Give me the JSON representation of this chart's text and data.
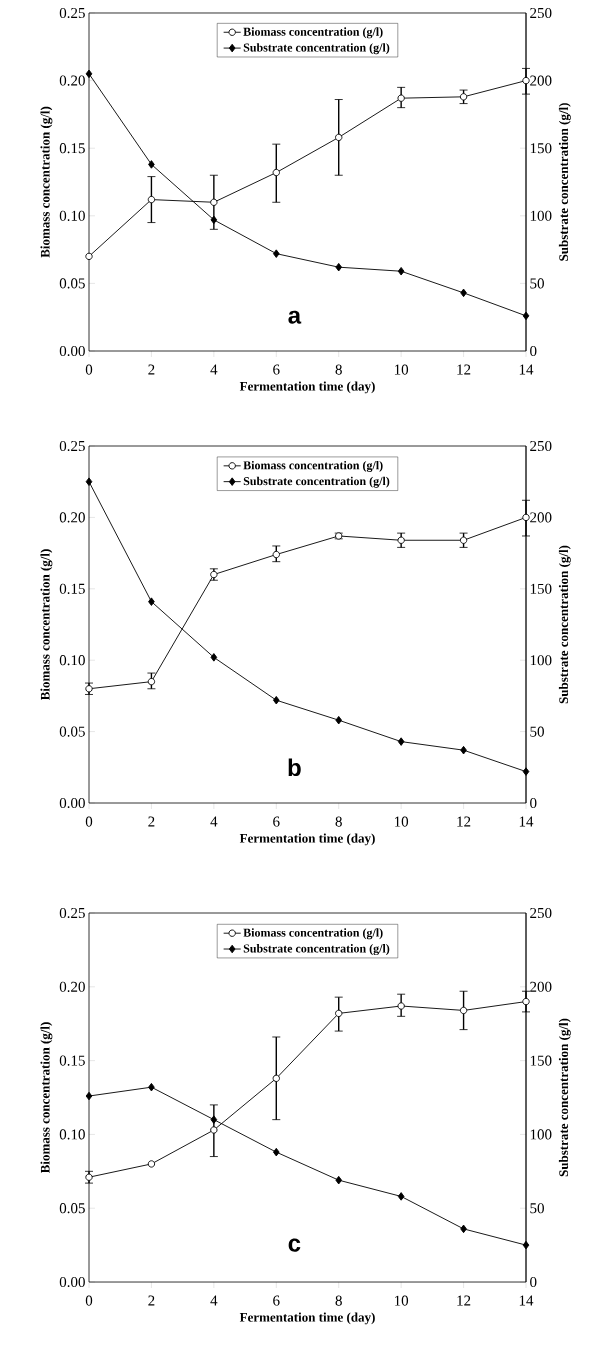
{
  "chart_data": [
    {
      "type": "line",
      "xlabel": "Fermentation time (day)",
      "ylabel": "Biomass concentration (g/l)",
      "y2label": "Substrate concentration (g/l)",
      "legend": "top",
      "annotations": [
        "a"
      ],
      "x": [
        0,
        2,
        4,
        6,
        8,
        10,
        12,
        14
      ],
      "xlim": [
        0,
        14
      ],
      "xticks": [
        0,
        2,
        4,
        6,
        8,
        10,
        12,
        14
      ],
      "ylim": [
        0,
        0.25
      ],
      "yticks": [
        {
          "value": 0,
          "label": "0.00"
        },
        {
          "value": 0.05,
          "label": "0.05"
        },
        {
          "value": 0.1,
          "label": "0.10"
        },
        {
          "value": 0.15,
          "label": "0.15"
        },
        {
          "value": 0.2,
          "label": "0.20"
        },
        {
          "value": 0.25,
          "label": "0.25"
        }
      ],
      "y2lim": [
        0,
        250
      ],
      "y2ticks": [
        0,
        50,
        100,
        150,
        200,
        250
      ],
      "series": [
        {
          "name": "Biomass concentration (g/l)",
          "color": "#000000",
          "marker": "circle",
          "values": [
            0.07,
            0.112,
            0.11,
            0.132,
            0.158,
            0.187,
            0.188,
            0.2
          ],
          "errors": [
            null,
            [
              0.095,
              0.129
            ],
            [
              0.09,
              0.13
            ],
            [
              0.11,
              0.153
            ],
            [
              0.13,
              0.186
            ],
            [
              0.18,
              0.195
            ],
            [
              0.183,
              0.193
            ],
            [
              0.19,
              0.209
            ]
          ]
        },
        {
          "name": "Substrate concentration (g/l)",
          "color": "#000000",
          "marker": "diamond",
          "axis": "y2",
          "values": [
            205,
            138,
            97,
            72,
            62,
            59,
            43,
            26
          ]
        }
      ]
    },
    {
      "type": "line",
      "xlabel": "Fermentation time (day)",
      "ylabel": "Biomass concentration (g/l)",
      "y2label": "Substrate concentration (g/l)",
      "legend": "top",
      "annotations": [
        "b"
      ],
      "x": [
        0,
        2,
        4,
        6,
        8,
        10,
        12,
        14
      ],
      "xlim": [
        0,
        14
      ],
      "xticks": [
        0,
        2,
        4,
        6,
        8,
        10,
        12,
        14
      ],
      "ylim": [
        0,
        0.25
      ],
      "yticks": [
        {
          "value": 0,
          "label": "0.00"
        },
        {
          "value": 0.05,
          "label": "0.05"
        },
        {
          "value": 0.1,
          "label": "0.10"
        },
        {
          "value": 0.15,
          "label": "0.15"
        },
        {
          "value": 0.2,
          "label": "0.20"
        },
        {
          "value": 0.25,
          "label": "0.25"
        }
      ],
      "y2lim": [
        0,
        250
      ],
      "y2ticks": [
        0,
        50,
        100,
        150,
        200,
        250
      ],
      "series": [
        {
          "name": "Biomass concentration (g/l)",
          "color": "#000000",
          "marker": "circle",
          "values": [
            0.08,
            0.085,
            0.16,
            0.174,
            0.187,
            0.184,
            0.184,
            0.2
          ],
          "errors": [
            [
              0.076,
              0.084
            ],
            [
              0.08,
              0.091
            ],
            [
              0.156,
              0.164
            ],
            [
              0.169,
              0.18
            ],
            [
              0.185,
              0.189
            ],
            [
              0.179,
              0.189
            ],
            [
              0.179,
              0.189
            ],
            [
              0.187,
              0.212
            ]
          ]
        },
        {
          "name": "Substrate concentration (g/l)",
          "color": "#000000",
          "marker": "diamond",
          "axis": "y2",
          "values": [
            225,
            141,
            102,
            72,
            58,
            43,
            37,
            22
          ]
        }
      ]
    },
    {
      "type": "line",
      "xlabel": "Fermentation time (day)",
      "ylabel": "Biomass concentration (g/l)",
      "y2label": "Substrate concentration (g/l)",
      "legend": "top",
      "annotations": [
        "c"
      ],
      "x": [
        0,
        2,
        4,
        6,
        8,
        10,
        12,
        14
      ],
      "xlim": [
        0,
        14
      ],
      "xticks": [
        0,
        2,
        4,
        6,
        8,
        10,
        12,
        14
      ],
      "ylim": [
        0,
        0.25
      ],
      "yticks": [
        {
          "value": 0,
          "label": "0.00"
        },
        {
          "value": 0.05,
          "label": "0.05"
        },
        {
          "value": 0.1,
          "label": "0.10"
        },
        {
          "value": 0.15,
          "label": "0.15"
        },
        {
          "value": 0.2,
          "label": "0.20"
        },
        {
          "value": 0.25,
          "label": "0.25"
        }
      ],
      "y2lim": [
        0,
        250
      ],
      "y2ticks": [
        0,
        50,
        100,
        150,
        200,
        250
      ],
      "series": [
        {
          "name": "Biomass concentration (g/l)",
          "color": "#000000",
          "marker": "circle",
          "values": [
            0.071,
            0.08,
            0.103,
            0.138,
            0.182,
            0.187,
            0.184,
            0.19
          ],
          "errors": [
            [
              0.067,
              0.075
            ],
            null,
            [
              0.085,
              0.12
            ],
            [
              0.11,
              0.166
            ],
            [
              0.17,
              0.193
            ],
            [
              0.18,
              0.195
            ],
            [
              0.171,
              0.197
            ],
            [
              0.183,
              0.197
            ]
          ]
        },
        {
          "name": "Substrate concentration (g/l)",
          "color": "#000000",
          "marker": "diamond",
          "axis": "y2",
          "values": [
            126,
            132,
            110,
            88,
            69,
            58,
            36,
            25
          ]
        }
      ]
    }
  ]
}
